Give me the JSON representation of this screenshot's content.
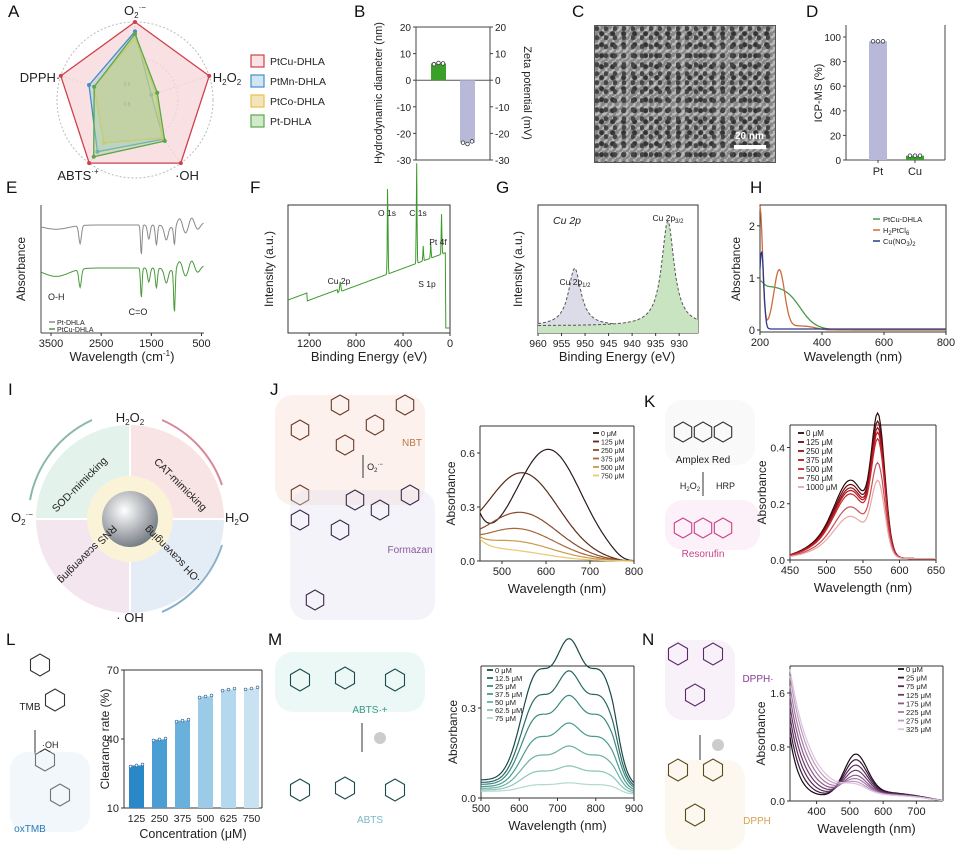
{
  "panel_labels": [
    "A",
    "B",
    "C",
    "D",
    "E",
    "F",
    "G",
    "H",
    "I",
    "J",
    "K",
    "L",
    "M",
    "N"
  ],
  "chart_data": [
    {
      "id": "A",
      "type": "radar",
      "axes": [
        "O2·−",
        "H2O2",
        "·OH",
        "ABTS·+",
        "DPPH·"
      ],
      "axis_labels": {
        "o2": "O",
        "o2_sub": "2",
        "o2_sup": "·−",
        "h2o2_a": "H",
        "h2o2_b": "O",
        "sub2": "2",
        "oh": "·OH",
        "abts": "ABTS",
        "abts_sup": "·+",
        "dpph": "DPPH·"
      },
      "rmax": 1.0,
      "grid_labels": [
        "0.5",
        "0.8"
      ],
      "series": [
        {
          "name": "PtCu-DHLA",
          "color": "#d0404c",
          "fill": "#f4c8cc",
          "values": [
            1.0,
            1.0,
            1.0,
            1.0,
            1.0
          ]
        },
        {
          "name": "PtMn-DHLA",
          "color": "#3f8fc8",
          "fill": "#a8cce4",
          "values": [
            0.88,
            0.22,
            0.62,
            0.82,
            0.62
          ]
        },
        {
          "name": "PtCo-DHLA",
          "color": "#e6c24a",
          "fill": "#e9c97a",
          "values": [
            0.8,
            0.28,
            0.6,
            0.68,
            0.55
          ]
        },
        {
          "name": "Pt-DHLA",
          "color": "#5aa84a",
          "fill": "#a8d49a",
          "values": [
            0.85,
            0.3,
            0.65,
            0.9,
            0.55
          ]
        }
      ]
    },
    {
      "id": "B",
      "type": "bar",
      "ylabel": "Hydrodynamic diameter (nm)",
      "y2label": "Zeta potential (mV)",
      "ylim": [
        -30,
        20
      ],
      "y2lim": [
        -30,
        20
      ],
      "yticks": [
        20,
        10,
        0,
        -10,
        -20,
        -30
      ],
      "series": [
        {
          "name": "Hydrodynamic diameter",
          "value": 6.3,
          "color": "#3aa02a",
          "points": [
            6.0,
            6.5,
            6.3
          ]
        },
        {
          "name": "Zeta potential",
          "value": -23.5,
          "color": "#b8b8d8",
          "points": [
            -23.5,
            -24.0,
            -23.0
          ]
        }
      ]
    },
    {
      "id": "D",
      "type": "bar",
      "ylabel": "ICP-MS (%)",
      "ylim": [
        0,
        100
      ],
      "yticks": [
        0,
        20,
        40,
        60,
        80,
        100
      ],
      "categories": [
        "Pt",
        "Cu"
      ],
      "values": [
        96.5,
        3.5
      ],
      "colors": [
        "#b8b8d8",
        "#3aa02a"
      ],
      "points": [
        [
          96.5,
          96.5,
          96.5
        ],
        [
          3.5,
          3.5,
          3.5
        ]
      ]
    },
    {
      "id": "E",
      "type": "line",
      "xlabel": "Wavelength (cm⁻¹)",
      "ylabel": "Absorbance",
      "xlim": [
        3700,
        450
      ],
      "xticks": [
        3500,
        2500,
        1500,
        500
      ],
      "annotations": [
        "O-H",
        "C=O"
      ],
      "series": [
        {
          "name": "Pt-DHLA",
          "color": "#8a8a8a"
        },
        {
          "name": "PtCu-DHLA",
          "color": "#4a9a3a"
        }
      ]
    },
    {
      "id": "F",
      "type": "line",
      "xlabel": "Binding Energy (eV)",
      "ylabel": "Intensity (a.u.)",
      "xlim": [
        1380,
        0
      ],
      "xticks": [
        1200,
        800,
        400,
        0
      ],
      "annotations": [
        "O 1s",
        "C 1s",
        "Cu 2p",
        "S 1p",
        "Pt 4f"
      ],
      "series": [
        {
          "name": "survey",
          "color": "#3a9a2a"
        }
      ]
    },
    {
      "id": "G",
      "type": "line",
      "title": "Cu 2p",
      "xlabel": "Binding Energy (eV)",
      "ylabel": "Intensity (a.u.)",
      "xlim": [
        960,
        926
      ],
      "xticks": [
        960,
        955,
        950,
        945,
        940,
        935,
        930
      ],
      "peaks": [
        {
          "label": "Cu 2p1/2",
          "center": 952.2,
          "height": 0.55,
          "fill": "#dcdce8"
        },
        {
          "label": "Cu 2p3/2",
          "center": 932.4,
          "height": 1.0,
          "fill": "#c8e4c0"
        }
      ]
    },
    {
      "id": "H",
      "type": "line",
      "xlabel": "Wavelength (nm)",
      "ylabel": "Absorbance",
      "xlim": [
        200,
        800
      ],
      "ylim": [
        0,
        2.4
      ],
      "xticks": [
        200,
        400,
        600,
        800
      ],
      "yticks": [
        0,
        1,
        2
      ],
      "series": [
        {
          "name": "PtCu-DHLA",
          "color": "#4a9a4a"
        },
        {
          "name": "H2PtCl6",
          "color": "#d06a3a"
        },
        {
          "name": "Cu(NO3)2",
          "color": "#2a3a8a"
        }
      ]
    },
    {
      "id": "J",
      "type": "line",
      "xlabel": "Wavelength (nm)",
      "ylabel": "Absorbance",
      "xlim": [
        450,
        800
      ],
      "ylim": [
        0,
        0.75
      ],
      "xticks": [
        500,
        600,
        700,
        800
      ],
      "yticks": [
        0.0,
        0.3,
        0.6
      ],
      "series": [
        {
          "name": "0 μM",
          "color": "#2a1a1a",
          "peak": 0.62,
          "peak_x": 605,
          "base": 0.29
        },
        {
          "name": "125 μM",
          "color": "#5a2a1a",
          "peak": 0.49,
          "peak_x": 545,
          "base": 0.28
        },
        {
          "name": "250 μM",
          "color": "#8a4a2a",
          "peak": 0.27,
          "peak_x": 540,
          "base": 0.18
        },
        {
          "name": "375 μM",
          "color": "#a8663a",
          "peak": 0.18,
          "peak_x": 530,
          "base": 0.15
        },
        {
          "name": "500 μM",
          "color": "#c89a4a",
          "peak": 0.11,
          "peak_x": 520,
          "base": 0.14
        },
        {
          "name": "750 μM",
          "color": "#e8c870",
          "peak": 0.06,
          "peak_x": 500,
          "base": 0.13
        }
      ]
    },
    {
      "id": "K",
      "type": "line",
      "xlabel": "Wavelength (nm)",
      "ylabel": "Absorbance",
      "xlim": [
        450,
        650
      ],
      "ylim": [
        0,
        0.48
      ],
      "xticks": [
        450,
        500,
        550,
        600,
        650
      ],
      "yticks": [
        0.0,
        0.2,
        0.4
      ],
      "series": [
        {
          "name": "0 μM",
          "color": "#2a0a0a",
          "peak": 0.455
        },
        {
          "name": "125 μM",
          "color": "#6a0a12",
          "peak": 0.43
        },
        {
          "name": "250 μM",
          "color": "#9a1018",
          "peak": 0.41
        },
        {
          "name": "375 μM",
          "color": "#b81820",
          "peak": 0.395
        },
        {
          "name": "500 μM",
          "color": "#c82830",
          "peak": 0.375
        },
        {
          "name": "750 μM",
          "color": "#c85058",
          "peak": 0.3
        },
        {
          "name": "1000 μM",
          "color": "#e8a8a8",
          "peak": 0.245
        }
      ]
    },
    {
      "id": "L",
      "type": "bar",
      "xlabel": "Concentration (μM)",
      "ylabel": "Clearance rate (%)",
      "ylim": [
        10,
        70
      ],
      "yticks": [
        10,
        40,
        70
      ],
      "categories": [
        "125",
        "250",
        "375",
        "500",
        "625",
        "750"
      ],
      "values": [
        28.5,
        39.8,
        48.0,
        58.5,
        61.5,
        62.0
      ],
      "colors": [
        "#2a88c8",
        "#4a9ed4",
        "#6ab0dc",
        "#9ccbe8",
        "#b4d8ee",
        "#c8e2f2"
      ]
    },
    {
      "id": "M",
      "type": "line",
      "xlabel": "Wavelength (nm)",
      "ylabel": "Absorbance",
      "xlim": [
        500,
        900
      ],
      "ylim": [
        0,
        0.44
      ],
      "xticks": [
        500,
        600,
        700,
        800,
        900
      ],
      "yticks": [
        0.0,
        0.3
      ],
      "series": [
        {
          "name": "0 μM",
          "color": "#1a4a4a",
          "scale": 1.0
        },
        {
          "name": "12.5 μM",
          "color": "#2a6a64",
          "scale": 0.79
        },
        {
          "name": "25 μM",
          "color": "#3a8a80",
          "scale": 0.63
        },
        {
          "name": "37.5 μM",
          "color": "#4a9a8e",
          "scale": 0.45
        },
        {
          "name": "50 μM",
          "color": "#6ab0a4",
          "scale": 0.3
        },
        {
          "name": "62.5 μM",
          "color": "#8ac4b8",
          "scale": 0.17
        },
        {
          "name": "75 μM",
          "color": "#b4d8d0",
          "scale": 0.06
        }
      ]
    },
    {
      "id": "N",
      "type": "line",
      "xlabel": "Wavelength (nm)",
      "ylabel": "Absorbance",
      "xlim": [
        320,
        780
      ],
      "ylim": [
        0,
        2.0
      ],
      "xticks": [
        400,
        500,
        600,
        700
      ],
      "yticks": [
        0.0,
        0.8,
        1.6
      ],
      "series": [
        {
          "name": "0 μM",
          "color": "#1a0a1a",
          "start": 0.9,
          "peak": 0.6
        },
        {
          "name": "25 μM",
          "color": "#3a1a3a",
          "start": 1.05,
          "peak": 0.52
        },
        {
          "name": "75 μM",
          "color": "#5a2a5a",
          "start": 1.2,
          "peak": 0.44
        },
        {
          "name": "125 μM",
          "color": "#6a3a6a",
          "start": 1.35,
          "peak": 0.36
        },
        {
          "name": "175 μM",
          "color": "#8a5a8a",
          "start": 1.5,
          "peak": 0.28
        },
        {
          "name": "225 μM",
          "color": "#a47aa4",
          "start": 1.65,
          "peak": 0.22
        },
        {
          "name": "275 μM",
          "color": "#c09ac0",
          "start": 1.8,
          "peak": 0.16
        },
        {
          "name": "325 μM",
          "color": "#dcc4dc",
          "start": 1.9,
          "peak": 0.11
        }
      ]
    }
  ],
  "tem": {
    "scale_label": "20 nm"
  },
  "diagram_I": {
    "species": {
      "h2o2": "H2O2",
      "h2o": "H2O",
      "o2": "O2·−",
      "oh": "· OH"
    },
    "quadrants": [
      "SOD-mimicking",
      "CAT-mimicking",
      "·OH scavenging",
      "RNS scavenging"
    ]
  },
  "molecules": {
    "J": {
      "top": "NBT",
      "bottom": "Formazan",
      "reagent": "O2·−"
    },
    "K": {
      "top": "Amplex Red",
      "bottom": "Resorufin",
      "reagent_left": "H2O2",
      "reagent_right": "HRP"
    },
    "L": {
      "top": "TMB",
      "bottom": "oxTMB",
      "reagent": "·OH"
    },
    "M": {
      "top": "ABTS·+",
      "bottom": "ABTS"
    },
    "N": {
      "top": "DPPH·",
      "bottom": "DPPH"
    }
  }
}
